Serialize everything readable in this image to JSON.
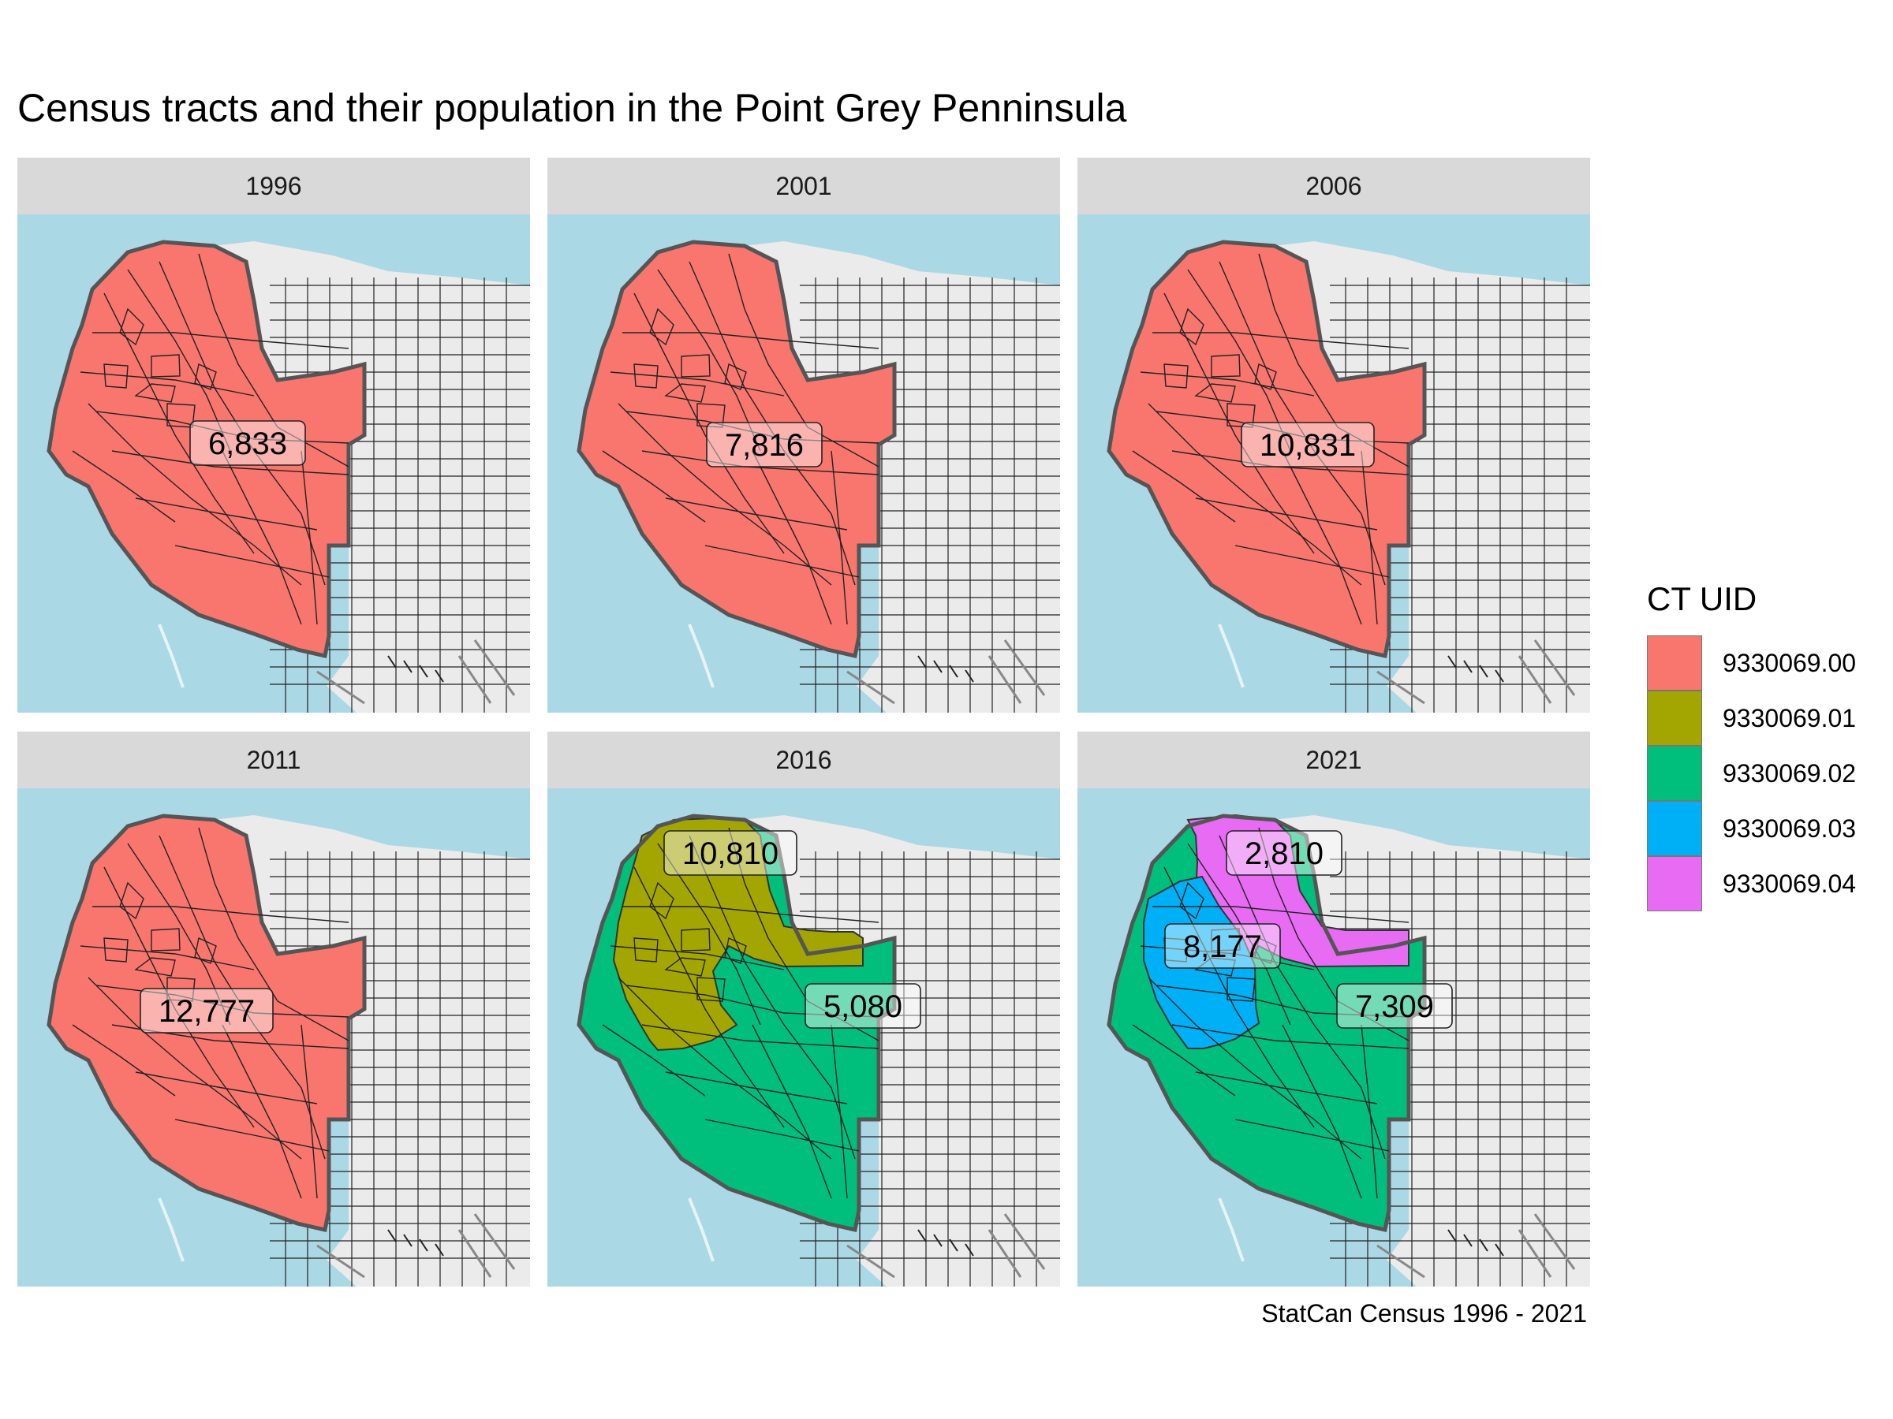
{
  "title": "Census tracts and their population in the Point Grey Penninsula",
  "caption": "StatCan Census 1996 - 2021",
  "legend": {
    "title": "CT UID",
    "items": [
      {
        "label": "9330069.00",
        "color": "#f8766d"
      },
      {
        "label": "9330069.01",
        "color": "#a3a500"
      },
      {
        "label": "9330069.02",
        "color": "#00bf7d"
      },
      {
        "label": "9330069.03",
        "color": "#00b0f6"
      },
      {
        "label": "9330069.04",
        "color": "#e76bf3"
      }
    ]
  },
  "colors": {
    "water": "#aad8e5",
    "land": "#ebebeb",
    "strip": "#d9d9d9"
  },
  "panels": [
    {
      "year": "1996",
      "regions": [
        {
          "ct": "9330069.00",
          "population": "6,833"
        }
      ]
    },
    {
      "year": "2001",
      "regions": [
        {
          "ct": "9330069.00",
          "population": "7,816"
        }
      ]
    },
    {
      "year": "2006",
      "regions": [
        {
          "ct": "9330069.00",
          "population": "10,831"
        }
      ]
    },
    {
      "year": "2011",
      "regions": [
        {
          "ct": "9330069.00",
          "population": "12,777"
        }
      ]
    },
    {
      "year": "2016",
      "regions": [
        {
          "ct": "9330069.01",
          "population": "10,810"
        },
        {
          "ct": "9330069.02",
          "population": "5,080"
        }
      ]
    },
    {
      "year": "2021",
      "regions": [
        {
          "ct": "9330069.04",
          "population": "2,810"
        },
        {
          "ct": "9330069.03",
          "population": "8,177"
        },
        {
          "ct": "9330069.02",
          "population": "7,309"
        }
      ]
    }
  ]
}
